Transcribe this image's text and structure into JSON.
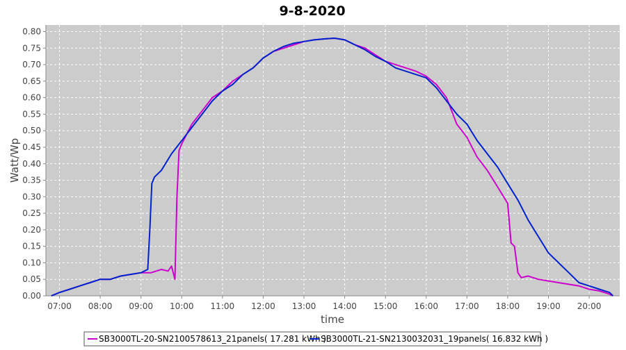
{
  "chart_data": {
    "type": "line",
    "title": "9-8-2020",
    "xlabel": "time",
    "ylabel": "Watt/Wp",
    "x_ticks": [
      "07:00",
      "08:00",
      "09:00",
      "10:00",
      "11:00",
      "12:00",
      "13:00",
      "14:00",
      "15:00",
      "16:00",
      "17:00",
      "18:00",
      "19:00",
      "20:00"
    ],
    "y_ticks": [
      "0.00",
      "0.05",
      "0.10",
      "0.15",
      "0.20",
      "0.25",
      "0.30",
      "0.35",
      "0.40",
      "0.45",
      "0.50",
      "0.55",
      "0.60",
      "0.65",
      "0.70",
      "0.75",
      "0.80"
    ],
    "xlim": [
      "06:40",
      "20:45"
    ],
    "ylim": [
      0,
      0.82
    ],
    "grid": true,
    "legend_position": "bottom",
    "colors": {
      "plot_background": "#cccccc",
      "gridline": "#ffffff"
    },
    "series": [
      {
        "name": "SB3000TL-20-SN2100578613_21panels( 17.281 kWh )",
        "color": "#cc00cc",
        "points": [
          [
            "06:48",
            0.0
          ],
          [
            "07:00",
            0.01
          ],
          [
            "07:15",
            0.02
          ],
          [
            "07:30",
            0.03
          ],
          [
            "07:45",
            0.04
          ],
          [
            "08:00",
            0.05
          ],
          [
            "08:15",
            0.05
          ],
          [
            "08:30",
            0.06
          ],
          [
            "08:45",
            0.065
          ],
          [
            "09:00",
            0.07
          ],
          [
            "09:15",
            0.07
          ],
          [
            "09:30",
            0.08
          ],
          [
            "09:40",
            0.075
          ],
          [
            "09:45",
            0.09
          ],
          [
            "09:50",
            0.05
          ],
          [
            "09:53",
            0.3
          ],
          [
            "09:56",
            0.44
          ],
          [
            "10:00",
            0.46
          ],
          [
            "10:15",
            0.52
          ],
          [
            "10:30",
            0.56
          ],
          [
            "10:45",
            0.6
          ],
          [
            "11:00",
            0.62
          ],
          [
            "11:15",
            0.65
          ],
          [
            "11:30",
            0.67
          ],
          [
            "11:45",
            0.69
          ],
          [
            "12:00",
            0.72
          ],
          [
            "12:15",
            0.74
          ],
          [
            "12:30",
            0.75
          ],
          [
            "12:45",
            0.76
          ],
          [
            "13:00",
            0.77
          ],
          [
            "13:15",
            0.775
          ],
          [
            "13:30",
            0.778
          ],
          [
            "13:45",
            0.78
          ],
          [
            "14:00",
            0.775
          ],
          [
            "14:15",
            0.76
          ],
          [
            "14:30",
            0.75
          ],
          [
            "14:45",
            0.73
          ],
          [
            "15:00",
            0.71
          ],
          [
            "15:15",
            0.7
          ],
          [
            "15:30",
            0.69
          ],
          [
            "15:45",
            0.68
          ],
          [
            "16:00",
            0.665
          ],
          [
            "16:15",
            0.64
          ],
          [
            "16:30",
            0.6
          ],
          [
            "16:45",
            0.52
          ],
          [
            "17:00",
            0.48
          ],
          [
            "17:15",
            0.42
          ],
          [
            "17:30",
            0.38
          ],
          [
            "17:45",
            0.33
          ],
          [
            "18:00",
            0.28
          ],
          [
            "18:05",
            0.16
          ],
          [
            "18:10",
            0.15
          ],
          [
            "18:15",
            0.07
          ],
          [
            "18:20",
            0.055
          ],
          [
            "18:30",
            0.06
          ],
          [
            "18:45",
            0.05
          ],
          [
            "19:00",
            0.045
          ],
          [
            "19:15",
            0.04
          ],
          [
            "19:30",
            0.035
          ],
          [
            "19:45",
            0.03
          ],
          [
            "20:00",
            0.02
          ],
          [
            "20:15",
            0.015
          ],
          [
            "20:30",
            0.005
          ],
          [
            "20:35",
            0.0
          ]
        ]
      },
      {
        "name": "SB3000TL-21-SN2130032031_19panels( 16.832 kWh )",
        "color": "#0022cc",
        "points": [
          [
            "06:48",
            0.0
          ],
          [
            "07:00",
            0.01
          ],
          [
            "07:15",
            0.02
          ],
          [
            "07:30",
            0.03
          ],
          [
            "07:45",
            0.04
          ],
          [
            "08:00",
            0.05
          ],
          [
            "08:15",
            0.05
          ],
          [
            "08:30",
            0.06
          ],
          [
            "08:45",
            0.065
          ],
          [
            "09:00",
            0.07
          ],
          [
            "09:10",
            0.08
          ],
          [
            "09:13",
            0.2
          ],
          [
            "09:16",
            0.34
          ],
          [
            "09:20",
            0.36
          ],
          [
            "09:30",
            0.38
          ],
          [
            "09:45",
            0.43
          ],
          [
            "10:00",
            0.47
          ],
          [
            "10:15",
            0.51
          ],
          [
            "10:30",
            0.55
          ],
          [
            "10:45",
            0.59
          ],
          [
            "11:00",
            0.62
          ],
          [
            "11:15",
            0.64
          ],
          [
            "11:30",
            0.67
          ],
          [
            "11:45",
            0.69
          ],
          [
            "12:00",
            0.72
          ],
          [
            "12:15",
            0.74
          ],
          [
            "12:30",
            0.755
          ],
          [
            "12:45",
            0.765
          ],
          [
            "13:00",
            0.77
          ],
          [
            "13:15",
            0.775
          ],
          [
            "13:30",
            0.778
          ],
          [
            "13:45",
            0.78
          ],
          [
            "14:00",
            0.775
          ],
          [
            "14:15",
            0.76
          ],
          [
            "14:30",
            0.745
          ],
          [
            "14:45",
            0.725
          ],
          [
            "15:00",
            0.71
          ],
          [
            "15:15",
            0.69
          ],
          [
            "15:30",
            0.68
          ],
          [
            "15:45",
            0.67
          ],
          [
            "16:00",
            0.66
          ],
          [
            "16:15",
            0.63
          ],
          [
            "16:30",
            0.59
          ],
          [
            "16:45",
            0.55
          ],
          [
            "17:00",
            0.52
          ],
          [
            "17:15",
            0.47
          ],
          [
            "17:30",
            0.43
          ],
          [
            "17:45",
            0.39
          ],
          [
            "18:00",
            0.34
          ],
          [
            "18:15",
            0.29
          ],
          [
            "18:30",
            0.23
          ],
          [
            "18:45",
            0.18
          ],
          [
            "19:00",
            0.13
          ],
          [
            "19:15",
            0.1
          ],
          [
            "19:30",
            0.07
          ],
          [
            "19:45",
            0.04
          ],
          [
            "20:00",
            0.03
          ],
          [
            "20:15",
            0.02
          ],
          [
            "20:30",
            0.01
          ],
          [
            "20:35",
            0.0
          ]
        ]
      }
    ]
  }
}
